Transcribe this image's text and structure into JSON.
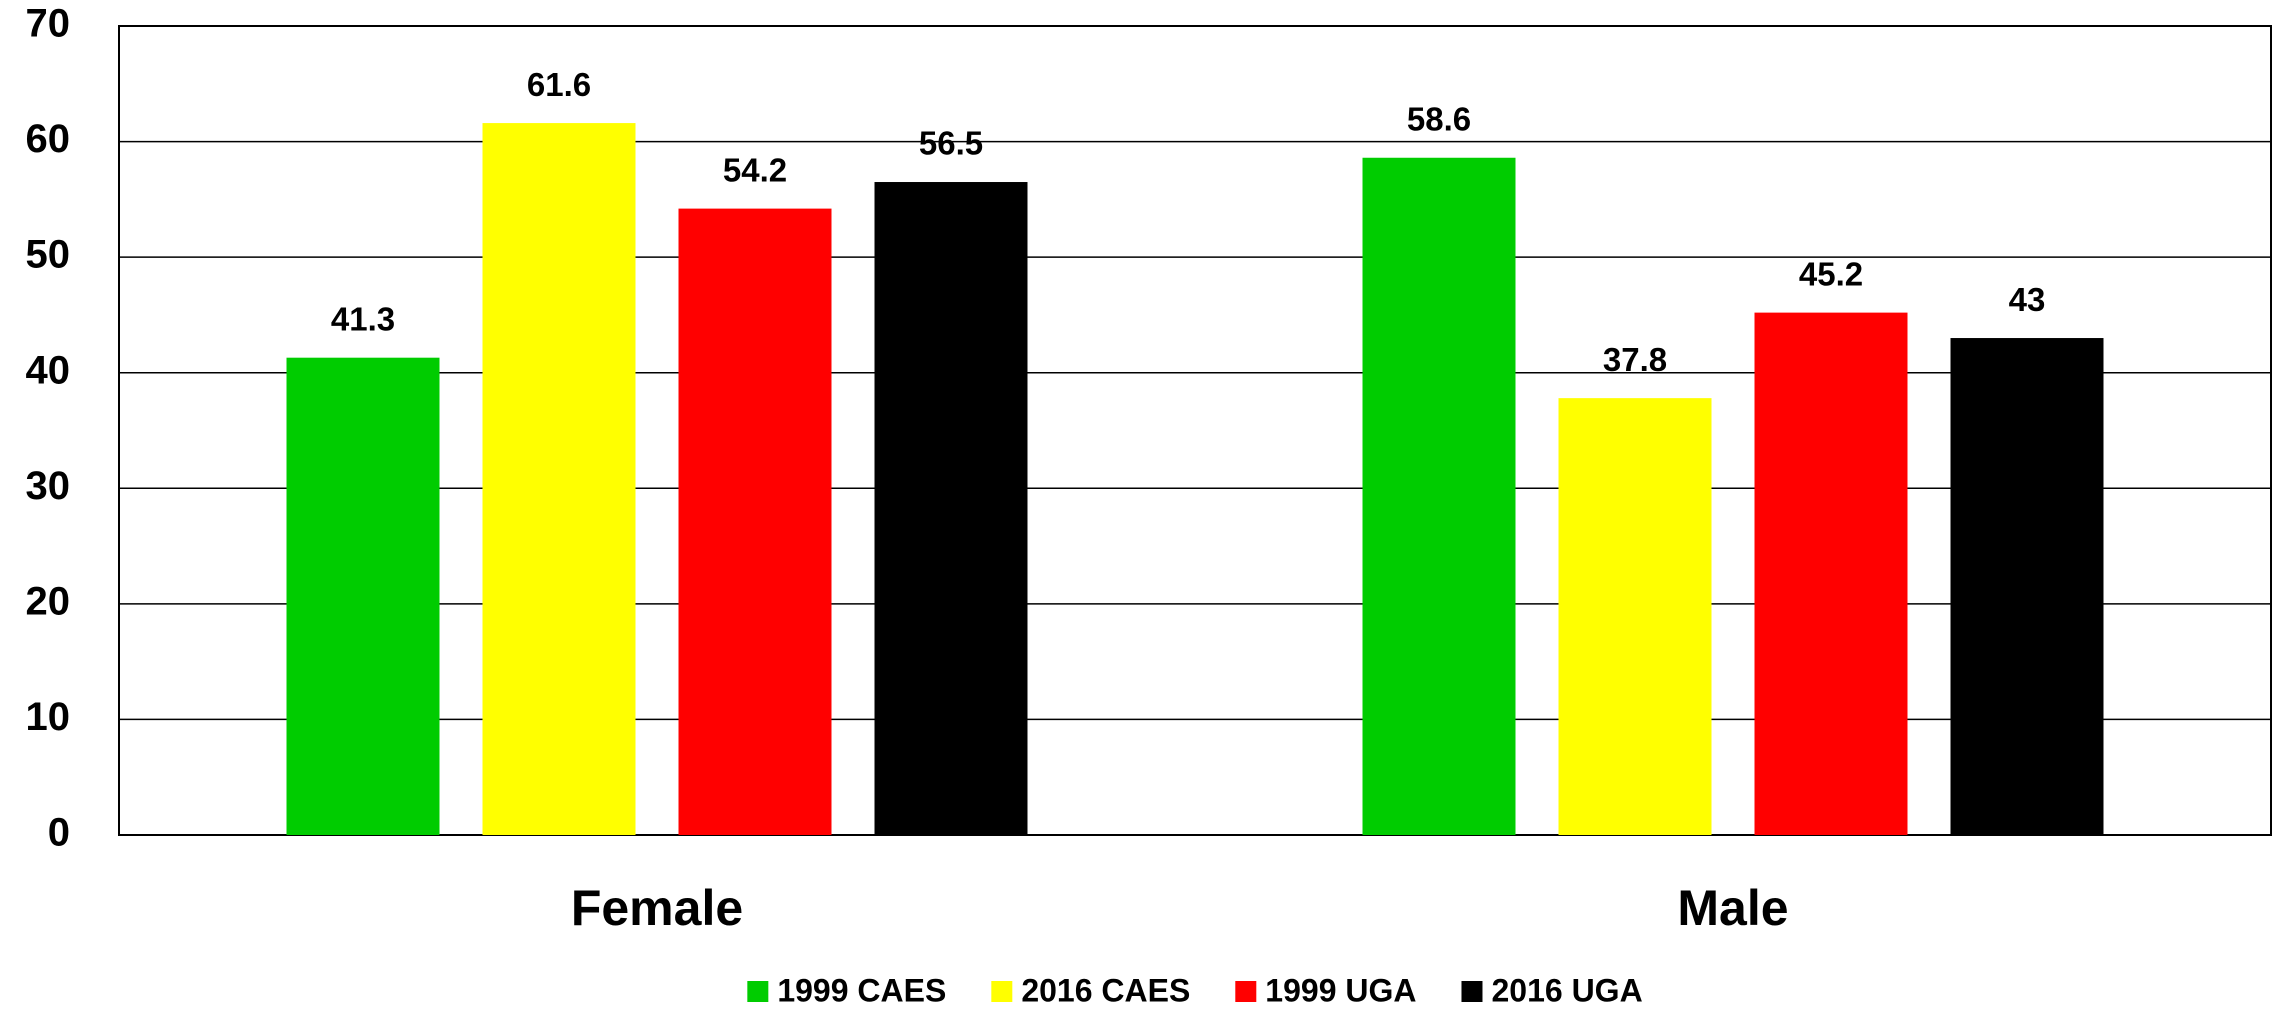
{
  "chart_data": {
    "type": "bar",
    "categories": [
      "Female",
      "Male"
    ],
    "series": [
      {
        "name": "1999 CAES",
        "color": "#00cc00",
        "values": [
          41.3,
          58.6
        ]
      },
      {
        "name": "2016 CAES",
        "color": "#ffff00",
        "values": [
          61.6,
          37.8
        ]
      },
      {
        "name": "1999 UGA",
        "color": "#ff0000",
        "values": [
          54.2,
          45.2
        ]
      },
      {
        "name": "2016 UGA",
        "color": "#000000",
        "values": [
          56.5,
          43
        ]
      }
    ],
    "ylim": [
      0,
      70
    ],
    "yticks": [
      0,
      10,
      20,
      30,
      40,
      50,
      60,
      70
    ],
    "grid": true,
    "legend": "bottom"
  }
}
